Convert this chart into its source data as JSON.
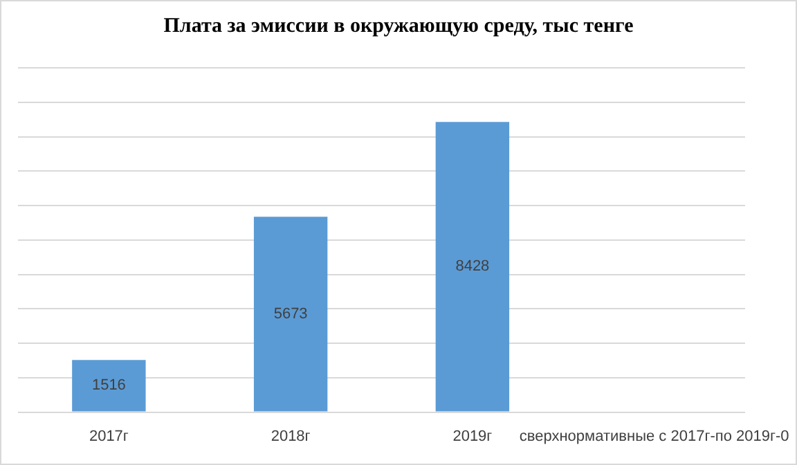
{
  "chart_data": {
    "type": "bar",
    "title": "Плата за эмиссии в окружающую среду, тыс тенге",
    "categories": [
      "2017г",
      "2018г",
      "2019г",
      "сверхнормативные с 2017г-по 2019г-0"
    ],
    "values": [
      1516,
      5673,
      8428,
      0
    ],
    "value_labels": [
      "1516",
      "5673",
      "8428",
      null
    ],
    "color": "#5b9bd5",
    "ylim": [
      0,
      10000
    ],
    "yticks": [
      {
        "value": 0,
        "label": null
      },
      {
        "value": 1000,
        "label": null
      },
      {
        "value": 2000,
        "label": null
      },
      {
        "value": 3000,
        "label": null
      },
      {
        "value": 4000,
        "label": null
      },
      {
        "value": 5000,
        "label": null
      },
      {
        "value": 6000,
        "label": null
      },
      {
        "value": 7000,
        "label": null
      },
      {
        "value": 8000,
        "label": null
      },
      {
        "value": 9000,
        "label": null
      },
      {
        "value": 10000,
        "label": null
      }
    ],
    "grid": "y",
    "legend": false,
    "tick_labels": "x"
  }
}
